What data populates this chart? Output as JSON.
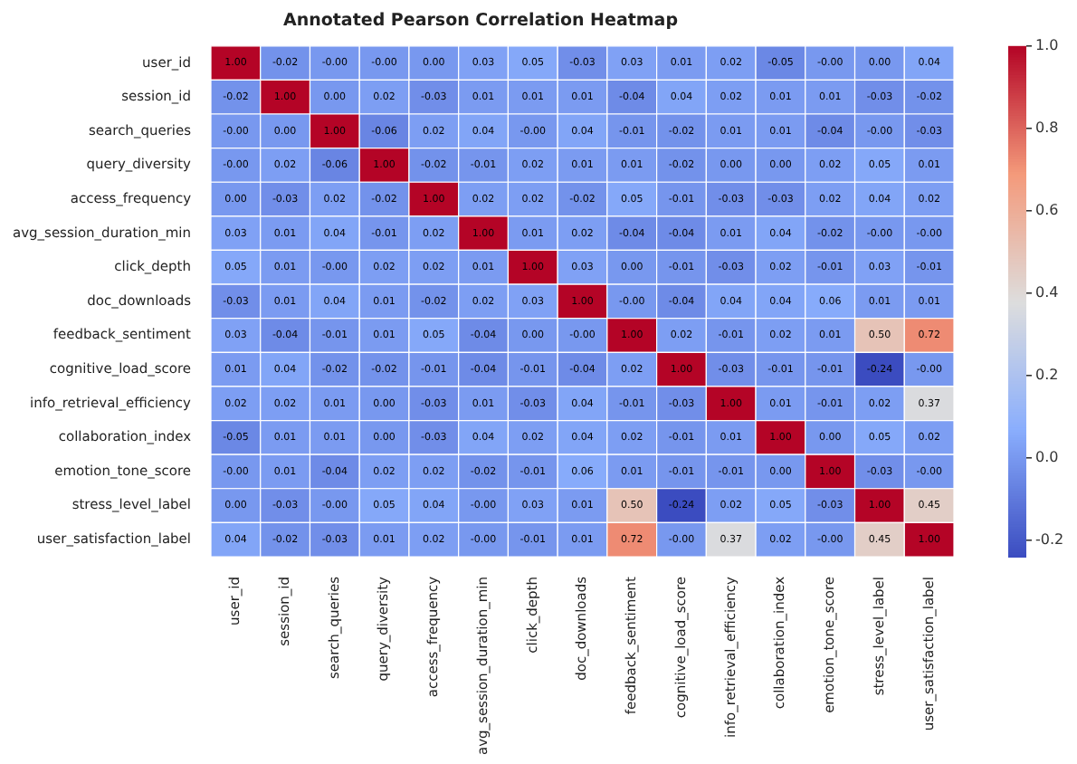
{
  "chart_data": {
    "type": "heatmap",
    "title": "Annotated Pearson Correlation Heatmap",
    "categories": [
      "user_id",
      "session_id",
      "search_queries",
      "query_diversity",
      "access_frequency",
      "avg_session_duration_min",
      "click_depth",
      "doc_downloads",
      "feedback_sentiment",
      "cognitive_load_score",
      "info_retrieval_efficiency",
      "collaboration_index",
      "emotion_tone_score",
      "stress_level_label",
      "user_satisfaction_label"
    ],
    "y_categories": [
      "user_id",
      "session_id",
      "search_queries",
      "query_diversity",
      "access_frequency",
      "avg_session_duration_min",
      "click_depth",
      "doc_downloads",
      "feedback_sentiment",
      "cognitive_load_score",
      "info_retrieval_efficiency",
      "collaboration_index",
      "emotion_tone_score",
      "stress_level_label",
      "user_satisfaction_label"
    ],
    "cells": [
      [
        1.0,
        -0.02,
        0,
        0,
        0.0,
        0.03,
        0.05,
        -0.03,
        0.03,
        0.01,
        0.02,
        -0.05,
        0,
        0.0,
        0.04
      ],
      [
        -0.02,
        1.0,
        0.0,
        0.02,
        -0.03,
        0.01,
        0.01,
        0.01,
        -0.04,
        0.04,
        0.02,
        0.01,
        0.01,
        -0.03,
        -0.02
      ],
      [
        0,
        0.0,
        1.0,
        -0.06,
        0.02,
        0.04,
        0,
        0.04,
        -0.01,
        -0.02,
        0.01,
        0.01,
        -0.04,
        0,
        -0.03
      ],
      [
        0,
        0.02,
        -0.06,
        1.0,
        -0.02,
        -0.01,
        0.02,
        0.01,
        0.01,
        -0.02,
        0.0,
        0.0,
        0.02,
        0.05,
        0.01
      ],
      [
        0.0,
        -0.03,
        0.02,
        -0.02,
        1.0,
        0.02,
        0.02,
        -0.02,
        0.05,
        -0.01,
        -0.03,
        -0.03,
        0.02,
        0.04,
        0.02
      ],
      [
        0.03,
        0.01,
        0.04,
        -0.01,
        0.02,
        1.0,
        0.01,
        0.02,
        -0.04,
        -0.04,
        0.01,
        0.04,
        -0.02,
        0,
        0
      ],
      [
        0.05,
        0.01,
        0,
        0.02,
        0.02,
        0.01,
        1.0,
        0.03,
        0.0,
        -0.01,
        -0.03,
        0.02,
        -0.01,
        0.03,
        -0.01
      ],
      [
        -0.03,
        0.01,
        0.04,
        0.01,
        -0.02,
        0.02,
        0.03,
        1.0,
        0,
        -0.04,
        0.04,
        0.04,
        0.06,
        0.01,
        0.01
      ],
      [
        0.03,
        -0.04,
        -0.01,
        0.01,
        0.05,
        -0.04,
        0.0,
        0,
        1.0,
        0.02,
        -0.01,
        0.02,
        0.01,
        0.5,
        0.72
      ],
      [
        0.01,
        0.04,
        -0.02,
        -0.02,
        -0.01,
        -0.04,
        -0.01,
        -0.04,
        0.02,
        1.0,
        -0.03,
        -0.01,
        -0.01,
        -0.24,
        0
      ],
      [
        0.02,
        0.02,
        0.01,
        0.0,
        -0.03,
        0.01,
        -0.03,
        0.04,
        -0.01,
        -0.03,
        1.0,
        0.01,
        -0.01,
        0.02,
        0.37
      ],
      [
        -0.05,
        0.01,
        0.01,
        0.0,
        -0.03,
        0.04,
        0.02,
        0.04,
        0.02,
        -0.01,
        0.01,
        1.0,
        0.0,
        0.05,
        0.02
      ],
      [
        0,
        0.01,
        -0.04,
        0.02,
        0.02,
        -0.02,
        -0.01,
        0.06,
        0.01,
        -0.01,
        -0.01,
        0.0,
        1.0,
        -0.03,
        0
      ],
      [
        0.0,
        -0.03,
        0,
        0.05,
        0.04,
        0,
        0.03,
        0.01,
        0.5,
        -0.24,
        0.02,
        0.05,
        -0.03,
        1.0,
        0.45
      ],
      [
        0.04,
        -0.02,
        -0.03,
        0.01,
        0.02,
        0,
        -0.01,
        0.01,
        0.72,
        0,
        0.37,
        0.02,
        0,
        0.45,
        1.0
      ]
    ],
    "cell_labels": [
      [
        "1.00",
        "-0.02",
        "-0.00",
        "-0.00",
        "0.00",
        "0.03",
        "0.05",
        "-0.03",
        "0.03",
        "0.01",
        "0.02",
        "-0.05",
        "-0.00",
        "0.00",
        "0.04"
      ],
      [
        "-0.02",
        "1.00",
        "0.00",
        "0.02",
        "-0.03",
        "0.01",
        "0.01",
        "0.01",
        "-0.04",
        "0.04",
        "0.02",
        "0.01",
        "0.01",
        "-0.03",
        "-0.02"
      ],
      [
        "-0.00",
        "0.00",
        "1.00",
        "-0.06",
        "0.02",
        "0.04",
        "-0.00",
        "0.04",
        "-0.01",
        "-0.02",
        "0.01",
        "0.01",
        "-0.04",
        "-0.00",
        "-0.03"
      ],
      [
        "-0.00",
        "0.02",
        "-0.06",
        "1.00",
        "-0.02",
        "-0.01",
        "0.02",
        "0.01",
        "0.01",
        "-0.02",
        "0.00",
        "0.00",
        "0.02",
        "0.05",
        "0.01"
      ],
      [
        "0.00",
        "-0.03",
        "0.02",
        "-0.02",
        "1.00",
        "0.02",
        "0.02",
        "-0.02",
        "0.05",
        "-0.01",
        "-0.03",
        "-0.03",
        "0.02",
        "0.04",
        "0.02"
      ],
      [
        "0.03",
        "0.01",
        "0.04",
        "-0.01",
        "0.02",
        "1.00",
        "0.01",
        "0.02",
        "-0.04",
        "-0.04",
        "0.01",
        "0.04",
        "-0.02",
        "-0.00",
        "-0.00"
      ],
      [
        "0.05",
        "0.01",
        "-0.00",
        "0.02",
        "0.02",
        "0.01",
        "1.00",
        "0.03",
        "0.00",
        "-0.01",
        "-0.03",
        "0.02",
        "-0.01",
        "0.03",
        "-0.01"
      ],
      [
        "-0.03",
        "0.01",
        "0.04",
        "0.01",
        "-0.02",
        "0.02",
        "0.03",
        "1.00",
        "-0.00",
        "-0.04",
        "0.04",
        "0.04",
        "0.06",
        "0.01",
        "0.01"
      ],
      [
        "0.03",
        "-0.04",
        "-0.01",
        "0.01",
        "0.05",
        "-0.04",
        "0.00",
        "-0.00",
        "1.00",
        "0.02",
        "-0.01",
        "0.02",
        "0.01",
        "0.50",
        "0.72"
      ],
      [
        "0.01",
        "0.04",
        "-0.02",
        "-0.02",
        "-0.01",
        "-0.04",
        "-0.01",
        "-0.04",
        "0.02",
        "1.00",
        "-0.03",
        "-0.01",
        "-0.01",
        "-0.24",
        "-0.00"
      ],
      [
        "0.02",
        "0.02",
        "0.01",
        "0.00",
        "-0.03",
        "0.01",
        "-0.03",
        "0.04",
        "-0.01",
        "-0.03",
        "1.00",
        "0.01",
        "-0.01",
        "0.02",
        "0.37"
      ],
      [
        "-0.05",
        "0.01",
        "0.01",
        "0.00",
        "-0.03",
        "0.04",
        "0.02",
        "0.04",
        "0.02",
        "-0.01",
        "0.01",
        "1.00",
        "0.00",
        "0.05",
        "0.02"
      ],
      [
        "-0.00",
        "0.01",
        "-0.04",
        "0.02",
        "0.02",
        "-0.02",
        "-0.01",
        "0.06",
        "0.01",
        "-0.01",
        "-0.01",
        "0.00",
        "1.00",
        "-0.03",
        "-0.00"
      ],
      [
        "0.00",
        "-0.03",
        "-0.00",
        "0.05",
        "0.04",
        "-0.00",
        "0.03",
        "0.01",
        "0.50",
        "-0.24",
        "0.02",
        "0.05",
        "-0.03",
        "1.00",
        "0.45"
      ],
      [
        "0.04",
        "-0.02",
        "-0.03",
        "0.01",
        "0.02",
        "-0.00",
        "-0.01",
        "0.01",
        "0.72",
        "-0.00",
        "0.37",
        "0.02",
        "-0.00",
        "0.45",
        "1.00"
      ]
    ],
    "clim": [
      -0.24,
      1
    ],
    "cticks": [
      {
        "value": -0.2,
        "label": "-0.2"
      },
      {
        "value": 0,
        "label": "0.0"
      },
      {
        "value": 0.2,
        "label": "0.2"
      },
      {
        "value": 0.4,
        "label": "0.4"
      },
      {
        "value": 0.6,
        "label": "0.6"
      },
      {
        "value": 0.8,
        "label": "0.8"
      },
      {
        "value": 1,
        "label": "1.0"
      }
    ]
  }
}
